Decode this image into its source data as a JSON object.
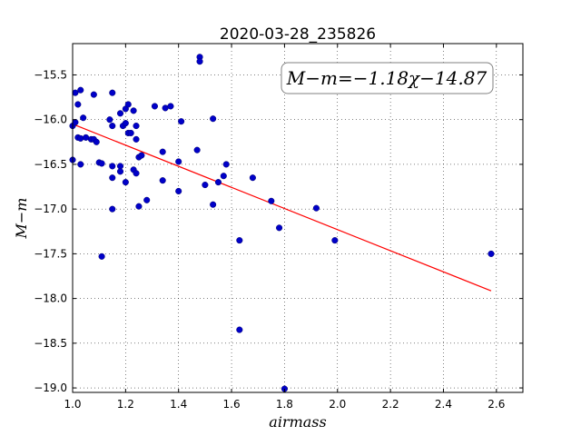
{
  "chart_data": {
    "type": "scatter",
    "title": "2020-03-28_235826",
    "xlabel": "airmass",
    "ylabel": "M−m",
    "xlim": [
      1.0,
      2.7
    ],
    "ylim": [
      -19.05,
      -15.15
    ],
    "x_ticks": [
      "1.0",
      "1.2",
      "1.4",
      "1.6",
      "1.8",
      "2.0",
      "2.2",
      "2.4",
      "2.6"
    ],
    "x_tick_values": [
      1.0,
      1.2,
      1.4,
      1.6,
      1.8,
      2.0,
      2.2,
      2.4,
      2.6
    ],
    "y_ticks": [
      "−15.5",
      "−16.0",
      "−16.5",
      "−17.0",
      "−17.5",
      "−18.0",
      "−18.5",
      "−19.0"
    ],
    "y_tick_values": [
      -15.5,
      -16.0,
      -16.5,
      -17.0,
      -17.5,
      -18.0,
      -18.5,
      -19.0
    ],
    "grid": true,
    "annotation": "M−m=−1.18χ−14.87",
    "annotation_position": "top-right",
    "fit": {
      "slope": -1.18,
      "intercept": -14.87,
      "x_range": [
        1.0,
        2.58
      ],
      "color": "#ff0000"
    },
    "point_color": "#0000c8",
    "points": [
      [
        1.0,
        -16.45
      ],
      [
        1.0,
        -16.07
      ],
      [
        1.01,
        -16.03
      ],
      [
        1.01,
        -15.7
      ],
      [
        1.02,
        -15.83
      ],
      [
        1.02,
        -16.2
      ],
      [
        1.03,
        -15.67
      ],
      [
        1.03,
        -16.5
      ],
      [
        1.03,
        -16.21
      ],
      [
        1.04,
        -15.98
      ],
      [
        1.05,
        -16.2
      ],
      [
        1.07,
        -16.22
      ],
      [
        1.08,
        -15.72
      ],
      [
        1.08,
        -16.22
      ],
      [
        1.09,
        -16.25
      ],
      [
        1.1,
        -16.48
      ],
      [
        1.11,
        -16.49
      ],
      [
        1.11,
        -17.53
      ],
      [
        1.14,
        -16.0
      ],
      [
        1.15,
        -15.7
      ],
      [
        1.15,
        -16.07
      ],
      [
        1.15,
        -16.52
      ],
      [
        1.15,
        -16.65
      ],
      [
        1.15,
        -17.0
      ],
      [
        1.18,
        -15.93
      ],
      [
        1.18,
        -16.52
      ],
      [
        1.18,
        -16.58
      ],
      [
        1.19,
        -16.07
      ],
      [
        1.2,
        -15.88
      ],
      [
        1.2,
        -16.04
      ],
      [
        1.2,
        -16.7
      ],
      [
        1.21,
        -15.83
      ],
      [
        1.21,
        -16.15
      ],
      [
        1.22,
        -16.15
      ],
      [
        1.23,
        -15.9
      ],
      [
        1.23,
        -16.56
      ],
      [
        1.24,
        -16.6
      ],
      [
        1.24,
        -16.07
      ],
      [
        1.24,
        -16.22
      ],
      [
        1.25,
        -16.42
      ],
      [
        1.25,
        -16.97
      ],
      [
        1.26,
        -16.4
      ],
      [
        1.28,
        -16.9
      ],
      [
        1.31,
        -15.85
      ],
      [
        1.34,
        -16.36
      ],
      [
        1.34,
        -16.68
      ],
      [
        1.35,
        -15.87
      ],
      [
        1.37,
        -15.85
      ],
      [
        1.4,
        -16.47
      ],
      [
        1.4,
        -16.8
      ],
      [
        1.41,
        -16.02
      ],
      [
        1.47,
        -16.34
      ],
      [
        1.48,
        -15.3
      ],
      [
        1.48,
        -15.35
      ],
      [
        1.5,
        -16.73
      ],
      [
        1.53,
        -16.95
      ],
      [
        1.53,
        -15.99
      ],
      [
        1.55,
        -16.7
      ],
      [
        1.57,
        -16.63
      ],
      [
        1.58,
        -16.5
      ],
      [
        1.63,
        -17.35
      ],
      [
        1.63,
        -18.35
      ],
      [
        1.68,
        -16.65
      ],
      [
        1.75,
        -16.91
      ],
      [
        1.78,
        -17.21
      ],
      [
        1.8,
        -19.01
      ],
      [
        1.92,
        -16.99
      ],
      [
        1.99,
        -17.35
      ],
      [
        2.58,
        -17.5
      ]
    ]
  }
}
